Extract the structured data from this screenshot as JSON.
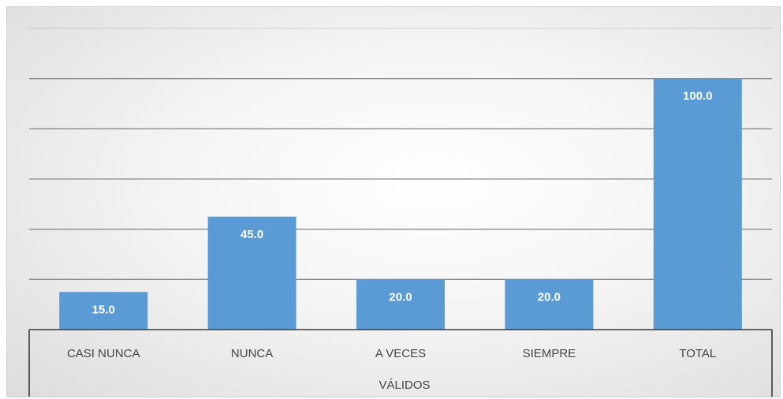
{
  "chart_data": {
    "type": "bar",
    "categories": [
      "CASI NUNCA",
      "NUNCA",
      "A VECES",
      "SIEMPRE",
      "TOTAL"
    ],
    "values": [
      15.0,
      45.0,
      20.0,
      20.0,
      100.0
    ],
    "data_labels": [
      "15.0",
      "45.0",
      "20.0",
      "20.0",
      "100.0"
    ],
    "group_label": "VÁLIDOS",
    "ylim": [
      0,
      120
    ],
    "grid": true,
    "bar_color": "#5b9bd5"
  }
}
